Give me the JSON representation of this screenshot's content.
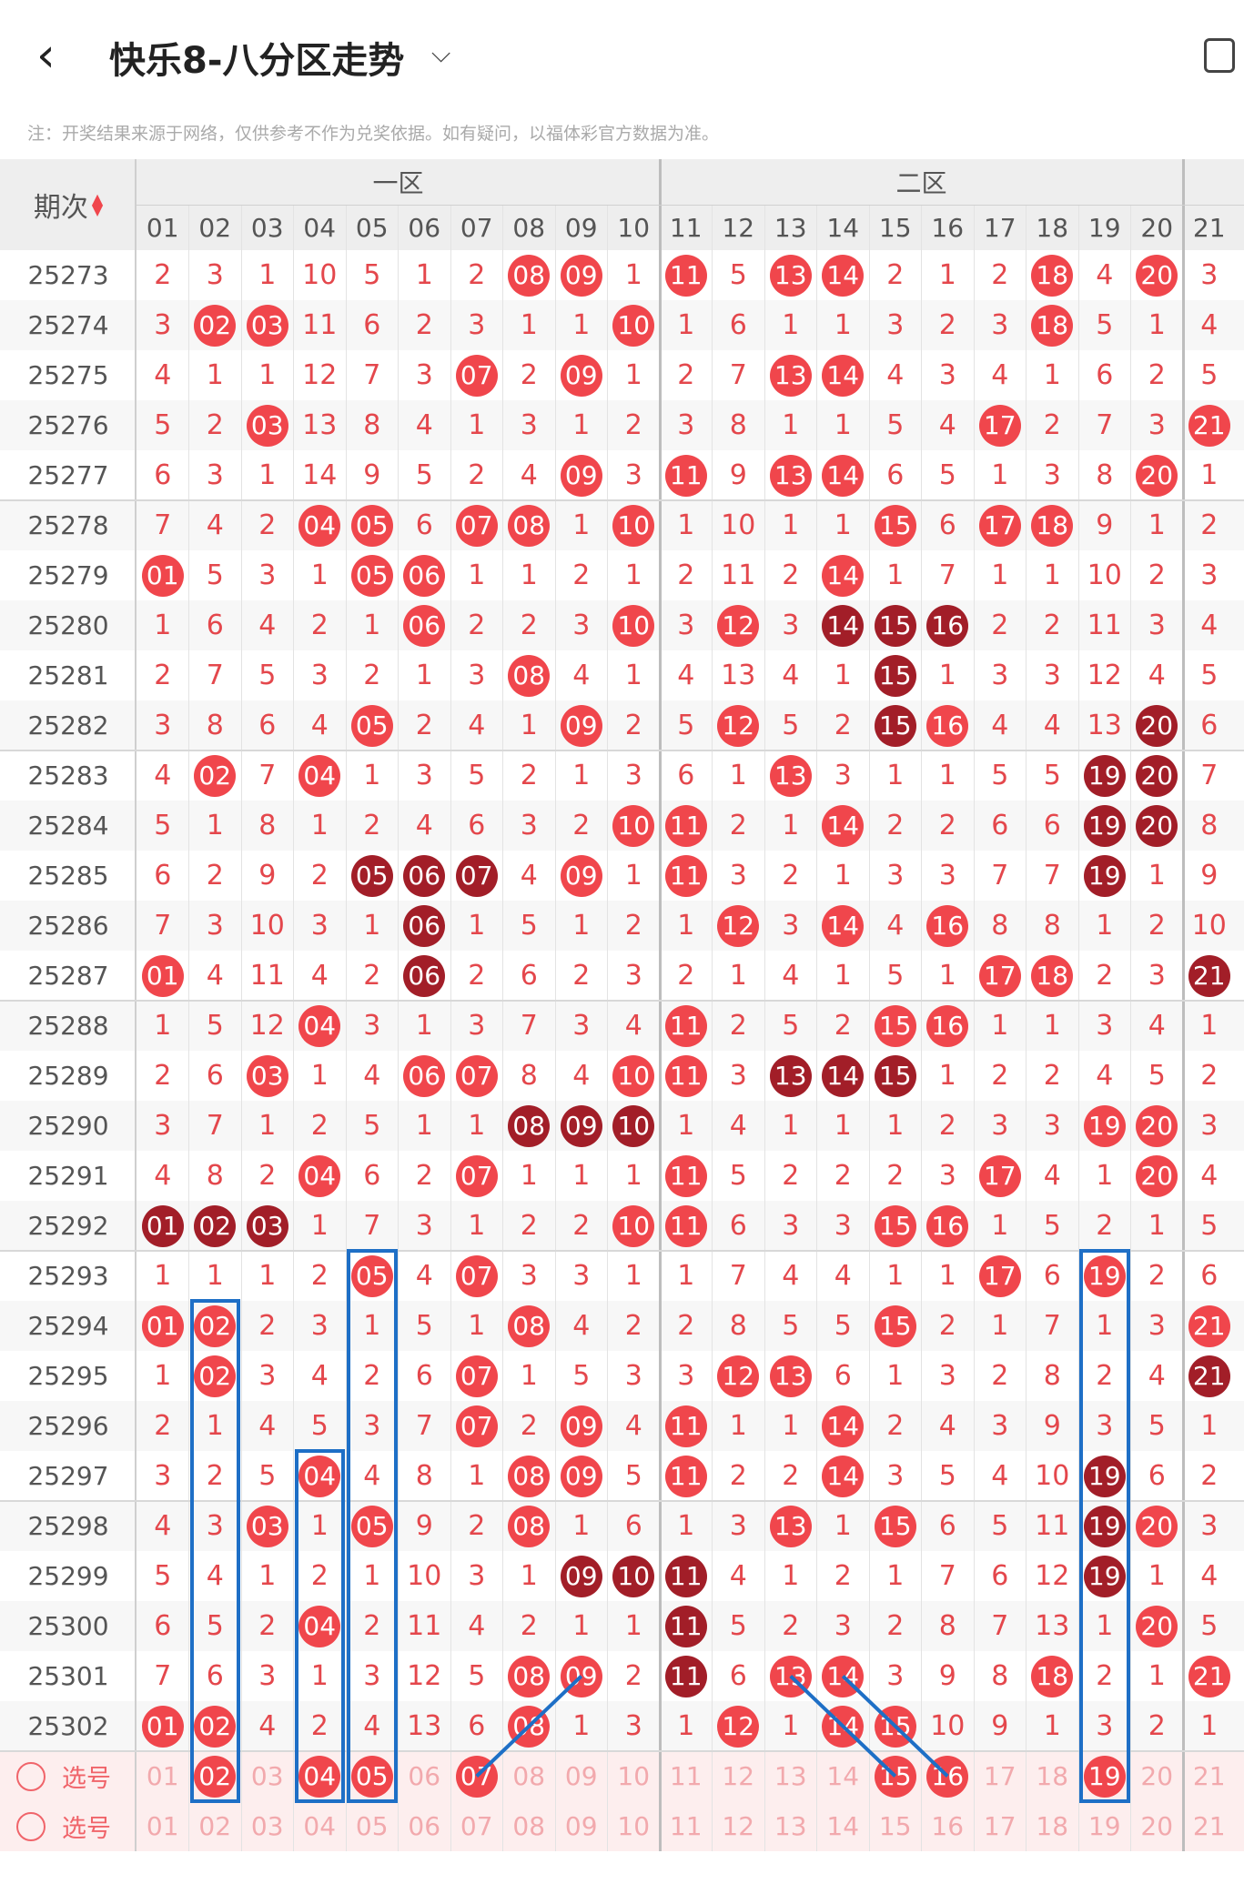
{
  "header": {
    "title": "快乐8-八分区走势",
    "back_icon": "chevron-left-icon",
    "dropdown_icon": "chevron-down-icon",
    "device_icon": "device-icon"
  },
  "note": "注：开奖结果来源于网络，仅供参考不作为兑奖依据。如有疑问，以福体彩官方数据为准。",
  "table": {
    "period_header": "期次",
    "zone_labels": [
      "一区",
      "二区"
    ],
    "columns": [
      "01",
      "02",
      "03",
      "04",
      "05",
      "06",
      "07",
      "08",
      "09",
      "10",
      "11",
      "12",
      "13",
      "14",
      "15",
      "16",
      "17",
      "18",
      "19",
      "20",
      "21"
    ],
    "rows": [
      {
        "period": "25273",
        "cells": [
          "2",
          "3",
          "1",
          "10",
          "5",
          "1",
          "2",
          "08",
          "09",
          "1",
          "11",
          "5",
          "13",
          "14",
          "2",
          "1",
          "2",
          "18",
          "4",
          "20",
          "3"
        ]
      },
      {
        "period": "25274",
        "cells": [
          "3",
          "02",
          "03",
          "11",
          "6",
          "2",
          "3",
          "1",
          "1",
          "10",
          "1",
          "6",
          "1",
          "1",
          "3",
          "2",
          "3",
          "18",
          "5",
          "1",
          "4"
        ]
      },
      {
        "period": "25275",
        "cells": [
          "4",
          "1",
          "1",
          "12",
          "7",
          "3",
          "07",
          "2",
          "09",
          "1",
          "2",
          "7",
          "13",
          "14",
          "4",
          "3",
          "4",
          "1",
          "6",
          "2",
          "5"
        ]
      },
      {
        "period": "25276",
        "cells": [
          "5",
          "2",
          "03",
          "13",
          "8",
          "4",
          "1",
          "3",
          "1",
          "2",
          "3",
          "8",
          "1",
          "1",
          "5",
          "4",
          "17",
          "2",
          "7",
          "3",
          "21"
        ]
      },
      {
        "period": "25277",
        "cells": [
          "6",
          "3",
          "1",
          "14",
          "9",
          "5",
          "2",
          "4",
          "09",
          "3",
          "11",
          "9",
          "13",
          "14",
          "6",
          "5",
          "1",
          "3",
          "8",
          "20",
          "1"
        ]
      },
      {
        "period": "25278",
        "cells": [
          "7",
          "4",
          "2",
          "04",
          "05",
          "6",
          "07",
          "08",
          "1",
          "10",
          "1",
          "10",
          "1",
          "1",
          "15",
          "6",
          "17",
          "18",
          "9",
          "1",
          "2"
        ]
      },
      {
        "period": "25279",
        "cells": [
          "01",
          "5",
          "3",
          "1",
          "05",
          "06",
          "1",
          "1",
          "2",
          "1",
          "2",
          "11",
          "2",
          "14",
          "1",
          "7",
          "1",
          "1",
          "10",
          "2",
          "3"
        ]
      },
      {
        "period": "25280",
        "cells": [
          "1",
          "6",
          "4",
          "2",
          "1",
          "06",
          "2",
          "2",
          "3",
          "10",
          "3",
          "12",
          "3",
          "14",
          "15",
          "16",
          "2",
          "2",
          "11",
          "3",
          "4"
        ]
      },
      {
        "period": "25281",
        "cells": [
          "2",
          "7",
          "5",
          "3",
          "2",
          "1",
          "3",
          "08",
          "4",
          "1",
          "4",
          "13",
          "4",
          "1",
          "15",
          "1",
          "3",
          "3",
          "12",
          "4",
          "5"
        ]
      },
      {
        "period": "25282",
        "cells": [
          "3",
          "8",
          "6",
          "4",
          "05",
          "2",
          "4",
          "1",
          "09",
          "2",
          "5",
          "12",
          "5",
          "2",
          "15",
          "16",
          "4",
          "4",
          "13",
          "20",
          "6"
        ]
      },
      {
        "period": "25283",
        "cells": [
          "4",
          "02",
          "7",
          "04",
          "1",
          "3",
          "5",
          "2",
          "1",
          "3",
          "6",
          "1",
          "13",
          "3",
          "1",
          "1",
          "5",
          "5",
          "19",
          "20",
          "7"
        ]
      },
      {
        "period": "25284",
        "cells": [
          "5",
          "1",
          "8",
          "1",
          "2",
          "4",
          "6",
          "3",
          "2",
          "10",
          "11",
          "2",
          "1",
          "14",
          "2",
          "2",
          "6",
          "6",
          "19",
          "20",
          "8"
        ]
      },
      {
        "period": "25285",
        "cells": [
          "6",
          "2",
          "9",
          "2",
          "05",
          "06",
          "07",
          "4",
          "09",
          "1",
          "11",
          "3",
          "2",
          "1",
          "3",
          "3",
          "7",
          "7",
          "19",
          "1",
          "9"
        ]
      },
      {
        "period": "25286",
        "cells": [
          "7",
          "3",
          "10",
          "3",
          "1",
          "06",
          "1",
          "5",
          "1",
          "2",
          "1",
          "12",
          "3",
          "14",
          "4",
          "16",
          "8",
          "8",
          "1",
          "2",
          "10"
        ]
      },
      {
        "period": "25287",
        "cells": [
          "01",
          "4",
          "11",
          "4",
          "2",
          "06",
          "2",
          "6",
          "2",
          "3",
          "2",
          "1",
          "4",
          "1",
          "5",
          "1",
          "17",
          "18",
          "2",
          "3",
          "21"
        ]
      },
      {
        "period": "25288",
        "cells": [
          "1",
          "5",
          "12",
          "04",
          "3",
          "1",
          "3",
          "7",
          "3",
          "4",
          "11",
          "2",
          "5",
          "2",
          "15",
          "16",
          "1",
          "1",
          "3",
          "4",
          "1"
        ]
      },
      {
        "period": "25289",
        "cells": [
          "2",
          "6",
          "03",
          "1",
          "4",
          "06",
          "07",
          "8",
          "4",
          "10",
          "11",
          "3",
          "13",
          "14",
          "15",
          "1",
          "2",
          "2",
          "4",
          "5",
          "2"
        ]
      },
      {
        "period": "25290",
        "cells": [
          "3",
          "7",
          "1",
          "2",
          "5",
          "1",
          "1",
          "08",
          "09",
          "10",
          "1",
          "4",
          "1",
          "1",
          "1",
          "2",
          "3",
          "3",
          "19",
          "20",
          "3"
        ]
      },
      {
        "period": "25291",
        "cells": [
          "4",
          "8",
          "2",
          "04",
          "6",
          "2",
          "07",
          "1",
          "1",
          "1",
          "11",
          "5",
          "2",
          "2",
          "2",
          "3",
          "17",
          "4",
          "1",
          "20",
          "4"
        ]
      },
      {
        "period": "25292",
        "cells": [
          "01",
          "02",
          "03",
          "1",
          "7",
          "3",
          "1",
          "2",
          "2",
          "10",
          "11",
          "6",
          "3",
          "3",
          "15",
          "16",
          "1",
          "5",
          "2",
          "1",
          "5"
        ]
      },
      {
        "period": "25293",
        "cells": [
          "1",
          "1",
          "1",
          "2",
          "05",
          "4",
          "07",
          "3",
          "3",
          "1",
          "1",
          "7",
          "4",
          "4",
          "1",
          "1",
          "17",
          "6",
          "19",
          "2",
          "6"
        ]
      },
      {
        "period": "25294",
        "cells": [
          "01",
          "02",
          "2",
          "3",
          "1",
          "5",
          "1",
          "08",
          "4",
          "2",
          "2",
          "8",
          "5",
          "5",
          "15",
          "2",
          "1",
          "7",
          "1",
          "3",
          "21"
        ]
      },
      {
        "period": "25295",
        "cells": [
          "1",
          "02",
          "3",
          "4",
          "2",
          "6",
          "07",
          "1",
          "5",
          "3",
          "3",
          "12",
          "13",
          "6",
          "1",
          "3",
          "2",
          "8",
          "2",
          "4",
          "21"
        ]
      },
      {
        "period": "25296",
        "cells": [
          "2",
          "1",
          "4",
          "5",
          "3",
          "7",
          "07",
          "2",
          "09",
          "4",
          "11",
          "1",
          "1",
          "14",
          "2",
          "4",
          "3",
          "9",
          "3",
          "5",
          "1"
        ]
      },
      {
        "period": "25297",
        "cells": [
          "3",
          "2",
          "5",
          "04",
          "4",
          "8",
          "1",
          "08",
          "09",
          "5",
          "11",
          "2",
          "2",
          "14",
          "3",
          "5",
          "4",
          "10",
          "19",
          "6",
          "2"
        ]
      },
      {
        "period": "25298",
        "cells": [
          "4",
          "3",
          "03",
          "1",
          "05",
          "9",
          "2",
          "08",
          "1",
          "6",
          "1",
          "3",
          "13",
          "1",
          "15",
          "6",
          "5",
          "11",
          "19",
          "20",
          "3"
        ]
      },
      {
        "period": "25299",
        "cells": [
          "5",
          "4",
          "1",
          "2",
          "1",
          "10",
          "3",
          "1",
          "09",
          "10",
          "11",
          "4",
          "1",
          "2",
          "1",
          "7",
          "6",
          "12",
          "19",
          "1",
          "4"
        ]
      },
      {
        "period": "25300",
        "cells": [
          "6",
          "5",
          "2",
          "04",
          "2",
          "11",
          "4",
          "2",
          "1",
          "1",
          "11",
          "5",
          "2",
          "3",
          "2",
          "8",
          "7",
          "13",
          "1",
          "20",
          "5"
        ]
      },
      {
        "period": "25301",
        "cells": [
          "7",
          "6",
          "3",
          "1",
          "3",
          "12",
          "5",
          "08",
          "09",
          "2",
          "11",
          "6",
          "13",
          "14",
          "3",
          "9",
          "8",
          "18",
          "2",
          "1",
          "21"
        ]
      },
      {
        "period": "25302",
        "cells": [
          "01",
          "02",
          "4",
          "2",
          "4",
          "13",
          "6",
          "08",
          "1",
          "3",
          "1",
          "12",
          "1",
          "14",
          "15",
          "10",
          "9",
          "1",
          "3",
          "2",
          "1"
        ]
      }
    ],
    "select_label": "选号",
    "select_rows": [
      [
        "01",
        "02",
        "03",
        "04",
        "05",
        "06",
        "07",
        "08",
        "09",
        "10",
        "11",
        "12",
        "13",
        "14",
        "15",
        "16",
        "17",
        "18",
        "19",
        "20",
        "21"
      ],
      [
        "01",
        "02",
        "03",
        "04",
        "05",
        "06",
        "07",
        "08",
        "09",
        "10",
        "11",
        "12",
        "13",
        "14",
        "15",
        "16",
        "17",
        "18",
        "19",
        "20",
        "21"
      ]
    ],
    "selected_numbers": [
      "02",
      "04",
      "05",
      "07",
      "15",
      "16",
      "19"
    ],
    "dark_hits": [
      [
        "25280",
        "14"
      ],
      [
        "25280",
        "15"
      ],
      [
        "25280",
        "16"
      ],
      [
        "25281",
        "15"
      ],
      [
        "25282",
        "15"
      ],
      [
        "25282",
        "20"
      ],
      [
        "25283",
        "19"
      ],
      [
        "25283",
        "20"
      ],
      [
        "25284",
        "19"
      ],
      [
        "25284",
        "20"
      ],
      [
        "25285",
        "05"
      ],
      [
        "25285",
        "06"
      ],
      [
        "25285",
        "07"
      ],
      [
        "25285",
        "19"
      ],
      [
        "25286",
        "06"
      ],
      [
        "25287",
        "06"
      ],
      [
        "25287",
        "21"
      ],
      [
        "25289",
        "13"
      ],
      [
        "25289",
        "14"
      ],
      [
        "25289",
        "15"
      ],
      [
        "25290",
        "08"
      ],
      [
        "25290",
        "09"
      ],
      [
        "25290",
        "10"
      ],
      [
        "25292",
        "01"
      ],
      [
        "25292",
        "02"
      ],
      [
        "25292",
        "03"
      ],
      [
        "25295",
        "21"
      ],
      [
        "25297",
        "19"
      ],
      [
        "25298",
        "19"
      ],
      [
        "25299",
        "09"
      ],
      [
        "25299",
        "10"
      ],
      [
        "25299",
        "11"
      ],
      [
        "25299",
        "19"
      ],
      [
        "25300",
        "11"
      ],
      [
        "25301",
        "11"
      ]
    ],
    "colors": {
      "red": "#f0464c",
      "dark": "#a21e28",
      "text": "#e4474c",
      "select_text": "#f2a9ad",
      "blue": "#1e6fc6"
    }
  }
}
